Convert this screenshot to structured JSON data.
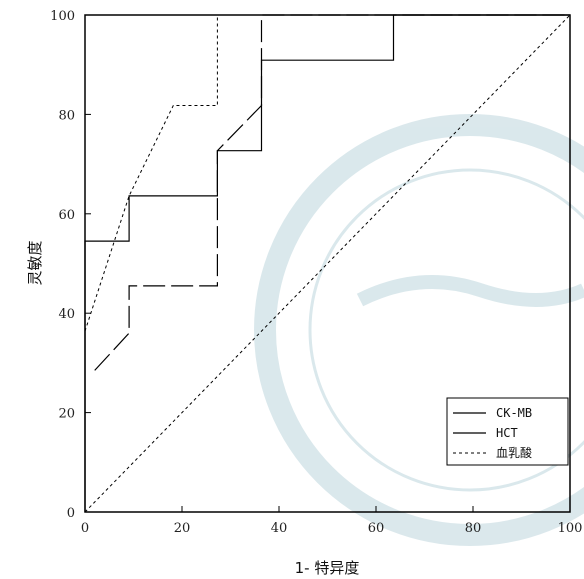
{
  "chart_data": {
    "type": "line",
    "title": "",
    "xlabel": "1- 特异度",
    "ylabel": "灵敏度",
    "xlim": [
      0,
      100
    ],
    "ylim": [
      0,
      100
    ],
    "xticks": [
      0,
      20,
      40,
      60,
      80,
      100
    ],
    "yticks": [
      0,
      20,
      40,
      60,
      80,
      100
    ],
    "grid": false,
    "legend_position": "bottom-right",
    "reference_line": {
      "x": [
        0,
        100
      ],
      "y": [
        0,
        100
      ],
      "style": "dotted"
    },
    "series": [
      {
        "name": "CK-MB",
        "style": "solid",
        "x": [
          0,
          0,
          9.1,
          9.1,
          27.3,
          27.3,
          36.4,
          36.4,
          63.6,
          63.6,
          100
        ],
        "y": [
          0,
          54.5,
          54.5,
          63.6,
          63.6,
          72.7,
          72.7,
          90.9,
          90.9,
          100,
          100
        ]
      },
      {
        "name": "HCT",
        "style": "long-dash",
        "x": [
          2,
          9.1,
          9.1,
          27.3,
          27.3,
          36.4,
          36.4,
          100
        ],
        "y": [
          28.5,
          36,
          45.5,
          45.5,
          72.7,
          81.8,
          100,
          100
        ]
      },
      {
        "name": "血乳酸",
        "style": "short-dash",
        "x": [
          0,
          9.1,
          18.2,
          27.3,
          27.3,
          100
        ],
        "y": [
          36.4,
          63.6,
          81.8,
          81.8,
          100,
          100
        ]
      }
    ]
  }
}
